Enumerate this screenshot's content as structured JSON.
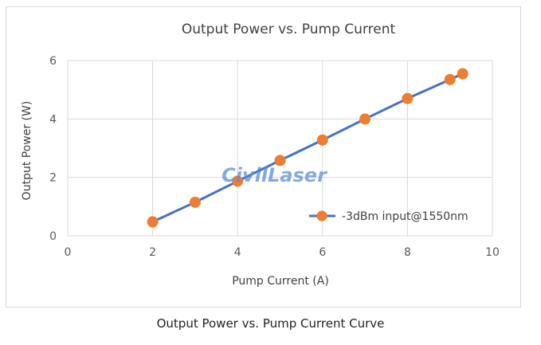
{
  "caption": "Output Power vs. Pump Current Curve",
  "watermark": "CivilLaser",
  "colors": {
    "line": "#4472C4",
    "marker_fill": "#ED7D31",
    "marker_stroke": "#ED7D31",
    "grid": "#d9d9d9",
    "watermark": "#5b8fd6"
  },
  "chart_data": {
    "type": "line",
    "title": "Output Power vs. Pump Current",
    "xlabel": "Pump Current (A)",
    "ylabel": "Output Power (W)",
    "xlim": [
      0,
      10
    ],
    "ylim": [
      0,
      6
    ],
    "xticks": [
      0,
      2,
      4,
      6,
      8,
      10
    ],
    "yticks": [
      0,
      2,
      4,
      6
    ],
    "grid": "both",
    "legend_position": "bottom-right",
    "series": [
      {
        "name": "-3dBm input@1550nm",
        "x": [
          2,
          3,
          4,
          5,
          6,
          7,
          8,
          9,
          9.3
        ],
        "y": [
          0.48,
          1.15,
          1.87,
          2.58,
          3.28,
          4.0,
          4.7,
          5.35,
          5.55
        ]
      }
    ]
  }
}
